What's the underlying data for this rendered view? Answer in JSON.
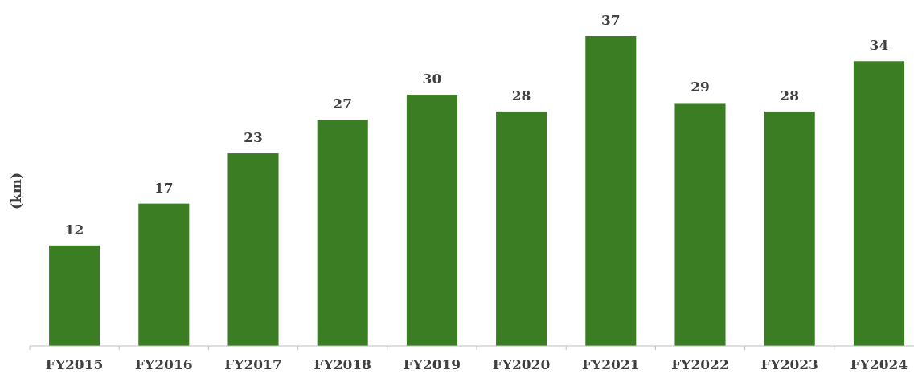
{
  "chart_data": {
    "type": "bar",
    "ylabel": "(km)",
    "categories": [
      "FY2015",
      "FY2016",
      "FY2017",
      "FY2018",
      "FY2019",
      "FY2020",
      "FY2021",
      "FY2022",
      "FY2023",
      "FY2024"
    ],
    "values": [
      12,
      17,
      23,
      27,
      30,
      28,
      37,
      29,
      28,
      34
    ],
    "color": "#3b7d23",
    "data_labels": true
  }
}
